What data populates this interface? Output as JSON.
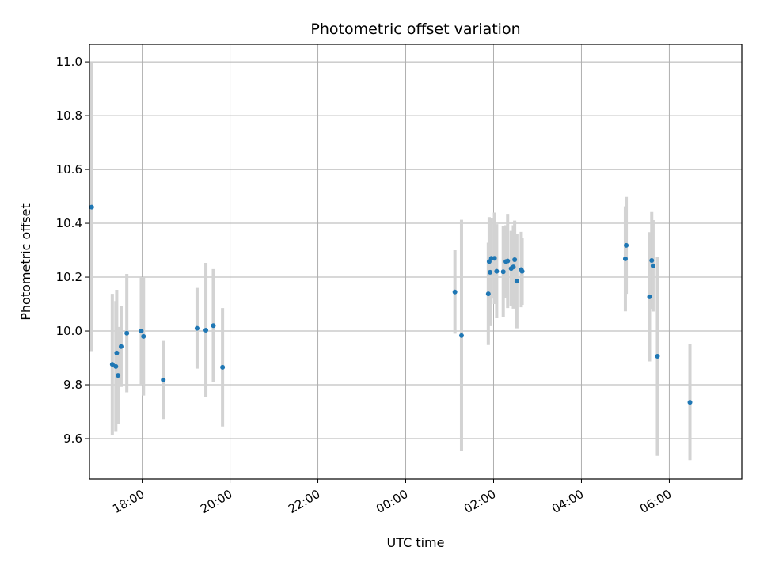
{
  "chart_data": {
    "type": "scatter",
    "title": "Photometric offset variation",
    "xlabel": "UTC time",
    "ylabel": "Photometric offset",
    "x_unit": "hours",
    "xlim": [
      16.8,
      31.65
    ],
    "ylim": [
      9.45,
      11.065
    ],
    "x_ticks": [
      {
        "value": 18,
        "label": "18:00"
      },
      {
        "value": 20,
        "label": "20:00"
      },
      {
        "value": 22,
        "label": "22:00"
      },
      {
        "value": 24,
        "label": "00:00"
      },
      {
        "value": 26,
        "label": "02:00"
      },
      {
        "value": 28,
        "label": "04:00"
      },
      {
        "value": 30,
        "label": "06:00"
      }
    ],
    "y_ticks": [
      {
        "value": 9.6,
        "label": "9.6"
      },
      {
        "value": 9.8,
        "label": "9.8"
      },
      {
        "value": 10.0,
        "label": "10.0"
      },
      {
        "value": 10.2,
        "label": "10.2"
      },
      {
        "value": 10.4,
        "label": "10.4"
      },
      {
        "value": 10.6,
        "label": "10.6"
      },
      {
        "value": 10.8,
        "label": "10.8"
      },
      {
        "value": 11.0,
        "label": "11.0"
      }
    ],
    "grid": true,
    "colors": {
      "point": "#1f77b4",
      "errorbar": "#d3d3d3"
    },
    "points": [
      {
        "x": 16.85,
        "y": 10.46,
        "err": 0.535
      },
      {
        "x": 17.32,
        "y": 9.876,
        "err": 0.262
      },
      {
        "x": 17.4,
        "y": 9.868,
        "err": 0.243
      },
      {
        "x": 17.42,
        "y": 9.918,
        "err": 0.235
      },
      {
        "x": 17.45,
        "y": 9.835,
        "err": 0.18
      },
      {
        "x": 17.52,
        "y": 9.942,
        "err": 0.15
      },
      {
        "x": 17.65,
        "y": 9.992,
        "err": 0.22
      },
      {
        "x": 17.98,
        "y": 10.0,
        "err": 0.2
      },
      {
        "x": 18.03,
        "y": 9.98,
        "err": 0.22
      },
      {
        "x": 18.48,
        "y": 9.818,
        "err": 0.145
      },
      {
        "x": 19.25,
        "y": 10.01,
        "err": 0.15
      },
      {
        "x": 19.45,
        "y": 10.003,
        "err": 0.25
      },
      {
        "x": 19.62,
        "y": 10.02,
        "err": 0.21
      },
      {
        "x": 19.83,
        "y": 9.865,
        "err": 0.22
      },
      {
        "x": 25.12,
        "y": 10.145,
        "err": 0.155
      },
      {
        "x": 25.27,
        "y": 9.983,
        "err": 0.43
      },
      {
        "x": 25.88,
        "y": 10.138,
        "err": 0.19
      },
      {
        "x": 25.9,
        "y": 10.258,
        "err": 0.165
      },
      {
        "x": 25.92,
        "y": 10.218,
        "err": 0.2
      },
      {
        "x": 25.95,
        "y": 10.27,
        "err": 0.15
      },
      {
        "x": 26.02,
        "y": 10.27,
        "err": 0.17
      },
      {
        "x": 26.07,
        "y": 10.222,
        "err": 0.175
      },
      {
        "x": 26.22,
        "y": 10.22,
        "err": 0.17
      },
      {
        "x": 26.28,
        "y": 10.258,
        "err": 0.135
      },
      {
        "x": 26.32,
        "y": 10.26,
        "err": 0.175
      },
      {
        "x": 26.4,
        "y": 10.232,
        "err": 0.14
      },
      {
        "x": 26.45,
        "y": 10.238,
        "err": 0.155
      },
      {
        "x": 26.48,
        "y": 10.265,
        "err": 0.145
      },
      {
        "x": 26.53,
        "y": 10.185,
        "err": 0.175
      },
      {
        "x": 26.63,
        "y": 10.228,
        "err": 0.14
      },
      {
        "x": 26.65,
        "y": 10.222,
        "err": 0.125
      },
      {
        "x": 29.0,
        "y": 10.268,
        "err": 0.195
      },
      {
        "x": 29.02,
        "y": 10.318,
        "err": 0.18
      },
      {
        "x": 29.55,
        "y": 10.127,
        "err": 0.24
      },
      {
        "x": 29.6,
        "y": 10.262,
        "err": 0.18
      },
      {
        "x": 29.63,
        "y": 10.242,
        "err": 0.17
      },
      {
        "x": 29.73,
        "y": 9.906,
        "err": 0.37
      },
      {
        "x": 30.47,
        "y": 9.735,
        "err": 0.215
      }
    ]
  }
}
